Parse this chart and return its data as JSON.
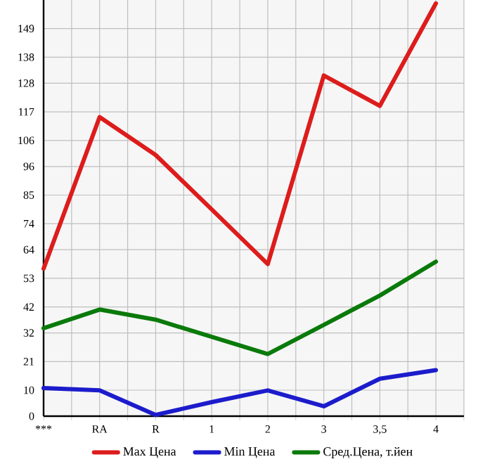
{
  "chart_data": {
    "type": "line",
    "categories": [
      "***",
      "RA",
      "R",
      "1",
      "2",
      "3",
      "3,5",
      "4"
    ],
    "series": [
      {
        "name": "Max Цена",
        "color": "#dd1c1c",
        "values": [
          56.7,
          115,
          100.4,
          79.5,
          58.5,
          131,
          119.3,
          158.7
        ]
      },
      {
        "name": "Min Цена",
        "color": "#1c1ccc",
        "values": [
          10.8,
          9.9,
          0.5,
          5.4,
          9.9,
          3.8,
          14.4,
          17.7
        ]
      },
      {
        "name": "Сред.Цена, т.йен",
        "color": "#0a7a0a",
        "values": [
          33.8,
          41,
          37.1,
          30.5,
          23.9,
          35.1,
          46.4,
          59.4
        ]
      }
    ],
    "ylim": [
      0,
      160
    ],
    "yticks": [
      0,
      10,
      21,
      32,
      42,
      53,
      64,
      74,
      85,
      96,
      106,
      117,
      128,
      138,
      149
    ],
    "grid": true,
    "legend": "bottom",
    "marker": "none",
    "line_style": "solid"
  }
}
